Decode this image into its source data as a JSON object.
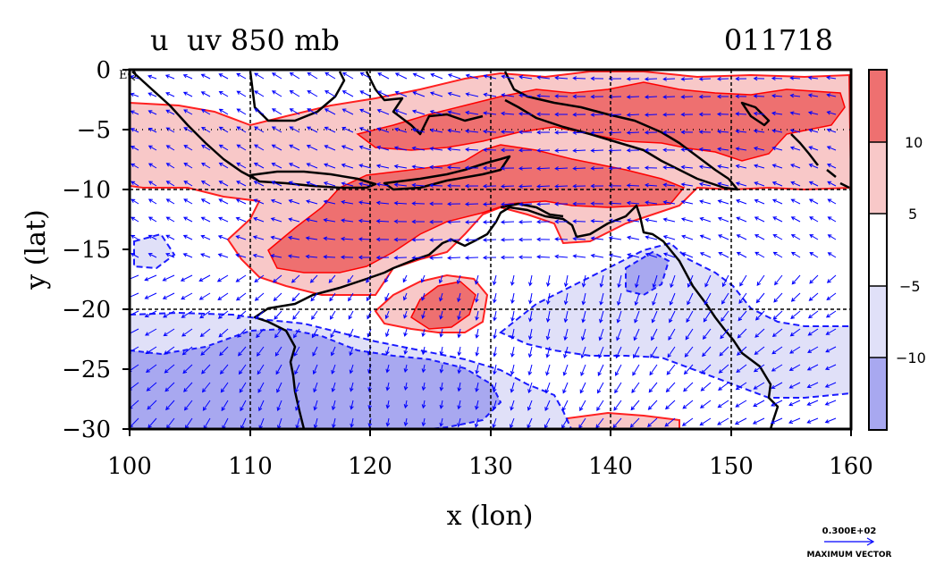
{
  "title": {
    "left": "u  uv 850 mb",
    "right": "011718"
  },
  "axes": {
    "xlabel": "x (lon)",
    "ylabel": "y (lat)",
    "x_ticks": [
      "100",
      "110",
      "120",
      "130",
      "140",
      "150",
      "160"
    ],
    "y_ticks": [
      "0",
      "−5",
      "−10",
      "−15",
      "−20",
      "−25",
      "−30"
    ],
    "corner_label": "EQ",
    "x_range": [
      100,
      160
    ],
    "y_range": [
      -30,
      0
    ]
  },
  "colorbar": {
    "labels": [
      "10",
      "5",
      "−5",
      "−10"
    ],
    "bands": [
      {
        "color": "#ee7070"
      },
      {
        "color": "#f8c8c8"
      },
      {
        "color": "#ffffff"
      },
      {
        "color": "#e0e0f8"
      },
      {
        "color": "#a8a8f0"
      }
    ]
  },
  "vector_legend": {
    "value": "0.300E+02",
    "caption": "MAXIMUM VECTOR"
  },
  "colors": {
    "strong_pos": "#ee7070",
    "weak_pos": "#f8c8c8",
    "weak_neg": "#e0e0f8",
    "strong_neg": "#a8a8f0",
    "pos_contour": "#ff0000",
    "neg_contour": "#0000ff",
    "vector": "#0000ff",
    "coast": "#000000"
  }
}
